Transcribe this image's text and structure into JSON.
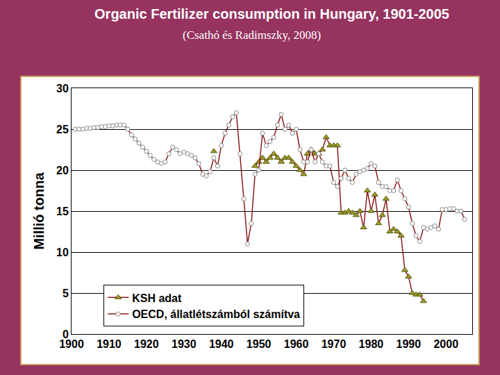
{
  "chart_data": {
    "type": "line",
    "title": "Organic Fertilizer consumption in Hungary, 1901-2005",
    "subtitle": "(Csathó és Radimszky, 2008)",
    "y_label": "Millió tonna",
    "x": [
      1901,
      1902,
      1903,
      1904,
      1905,
      1906,
      1907,
      1908,
      1909,
      1910,
      1911,
      1912,
      1913,
      1914,
      1915,
      1916,
      1917,
      1918,
      1919,
      1920,
      1921,
      1922,
      1923,
      1924,
      1925,
      1926,
      1927,
      1928,
      1929,
      1930,
      1931,
      1932,
      1933,
      1934,
      1935,
      1936,
      1937,
      1938,
      1939,
      1940,
      1941,
      1942,
      1943,
      1944,
      1945,
      1946,
      1947,
      1948,
      1949,
      1950,
      1951,
      1952,
      1953,
      1954,
      1955,
      1956,
      1957,
      1958,
      1959,
      1960,
      1961,
      1962,
      1963,
      1964,
      1965,
      1966,
      1967,
      1968,
      1969,
      1970,
      1971,
      1972,
      1973,
      1974,
      1975,
      1976,
      1977,
      1978,
      1979,
      1980,
      1981,
      1982,
      1983,
      1984,
      1985,
      1986,
      1987,
      1988,
      1989,
      1990,
      1991,
      1992,
      1993,
      1994,
      1995,
      1996,
      1997,
      1998,
      1999,
      2000,
      2001,
      2002,
      2003,
      2004,
      2005
    ],
    "series": [
      {
        "name": "KSH adat",
        "color": "#8b1a1a",
        "marker": "triangle-up",
        "line_style": "solid",
        "values": [
          null,
          null,
          null,
          null,
          null,
          null,
          null,
          null,
          null,
          null,
          null,
          null,
          null,
          null,
          null,
          null,
          null,
          null,
          null,
          null,
          null,
          null,
          null,
          null,
          null,
          null,
          null,
          null,
          null,
          null,
          null,
          null,
          null,
          null,
          null,
          null,
          null,
          22.3,
          null,
          null,
          null,
          null,
          null,
          null,
          null,
          null,
          null,
          null,
          20.5,
          21.0,
          21.5,
          21.0,
          21.5,
          22.0,
          21.5,
          21.0,
          21.5,
          21.5,
          21.0,
          20.5,
          20.0,
          19.5,
          22.0,
          22.5,
          22.0,
          22.0,
          22.5,
          24.0,
          23.0,
          23.0,
          23.0,
          14.8,
          14.8,
          15.0,
          14.8,
          14.5,
          15.0,
          13.0,
          17.5,
          15.0,
          17.0,
          13.5,
          14.5,
          16.5,
          12.5,
          12.8,
          12.5,
          12.0,
          7.8,
          7.0,
          5.0,
          4.8,
          4.8,
          4.0,
          null,
          null,
          null,
          null,
          null,
          null,
          null,
          null,
          null,
          null,
          null
        ]
      },
      {
        "name": "OECD, állatlétszámból számítva",
        "color": "#8b1a1a",
        "marker": "circle",
        "line_style": "solid",
        "values": [
          25.0,
          25.0,
          25.0,
          25.1,
          25.1,
          25.2,
          25.2,
          25.3,
          25.3,
          25.4,
          25.4,
          25.5,
          25.5,
          25.5,
          25.0,
          24.3,
          23.8,
          23.3,
          22.8,
          22.3,
          21.8,
          21.3,
          21.0,
          20.8,
          21.0,
          22.0,
          22.8,
          22.5,
          22.0,
          22.2,
          22.0,
          21.8,
          21.5,
          20.8,
          19.5,
          19.3,
          19.8,
          21.5,
          20.5,
          23.0,
          24.5,
          25.5,
          26.5,
          27.0,
          22.0,
          16.5,
          11.0,
          13.5,
          19.5,
          20.0,
          24.5,
          23.0,
          23.5,
          24.0,
          25.5,
          26.8,
          25.0,
          25.5,
          24.5,
          25.0,
          22.5,
          21.0,
          21.0,
          22.5,
          21.0,
          22.0,
          21.0,
          20.5,
          20.5,
          18.5,
          18.0,
          19.0,
          20.0,
          19.0,
          18.5,
          19.5,
          19.8,
          20.0,
          20.2,
          20.8,
          20.5,
          18.5,
          18.0,
          18.0,
          17.5,
          17.5,
          18.8,
          17.5,
          16.5,
          15.5,
          13.5,
          12.0,
          11.3,
          13.0,
          12.8,
          13.0,
          13.2,
          12.8,
          15.2,
          15.2,
          15.3,
          15.3,
          15.0,
          15.0,
          14.0
        ]
      }
    ],
    "xlim": [
      1900,
      2007
    ],
    "xticks": [
      1900,
      1910,
      1920,
      1930,
      1940,
      1950,
      1960,
      1970,
      1980,
      1990,
      2000
    ],
    "ylim": [
      0,
      30
    ],
    "yticks": [
      0,
      5,
      10,
      15,
      20,
      25,
      30
    ],
    "grid": true,
    "legend": "lower left"
  }
}
